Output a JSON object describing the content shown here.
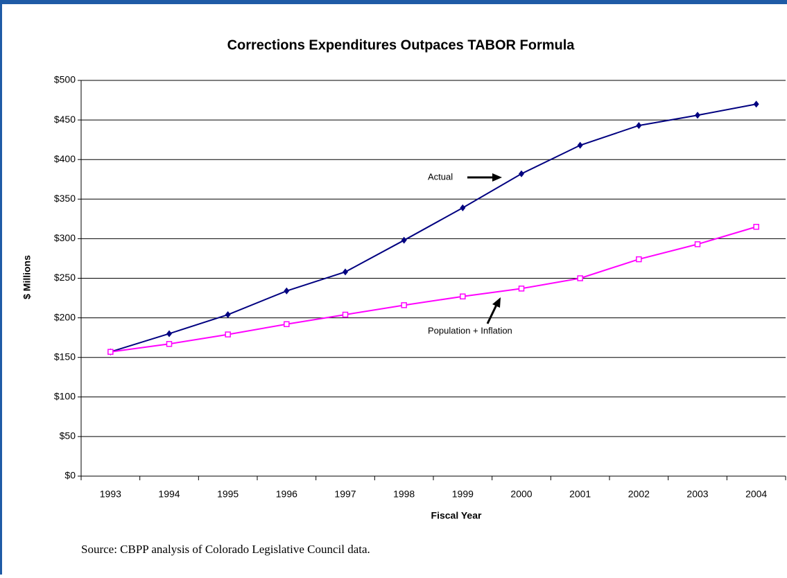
{
  "chart_data": {
    "type": "line",
    "title": "Corrections Expenditures Outpaces TABOR Formula",
    "x_label": "Fiscal Year",
    "y_label": "$ Millions",
    "source": "Source: CBPP analysis of Colorado Legislative Council data.",
    "categories": [
      "1993",
      "1994",
      "1995",
      "1996",
      "1997",
      "1998",
      "1999",
      "2000",
      "2001",
      "2002",
      "2003",
      "2004"
    ],
    "series": [
      {
        "name": "Actual",
        "color": "#000080",
        "marker": "diamond",
        "values": [
          157,
          180,
          204,
          234,
          258,
          298,
          339,
          382,
          418,
          443,
          456,
          470
        ]
      },
      {
        "name": "Population + Inflation",
        "color": "#ff00ff",
        "marker": "square",
        "values": [
          157,
          167,
          179,
          192,
          204,
          216,
          227,
          237,
          250,
          274,
          293,
          315
        ]
      }
    ],
    "ylim": [
      0,
      500
    ],
    "yticks": [
      {
        "value": 0,
        "label": "$0"
      },
      {
        "value": 50,
        "label": "$50"
      },
      {
        "value": 100,
        "label": "$100"
      },
      {
        "value": 150,
        "label": "$150"
      },
      {
        "value": 200,
        "label": "$200"
      },
      {
        "value": 250,
        "label": "$250"
      },
      {
        "value": 300,
        "label": "$300"
      },
      {
        "value": 350,
        "label": "$350"
      },
      {
        "value": 400,
        "label": "$400"
      },
      {
        "value": 450,
        "label": "$450"
      },
      {
        "value": 500,
        "label": "$500"
      }
    ],
    "grid": true
  }
}
